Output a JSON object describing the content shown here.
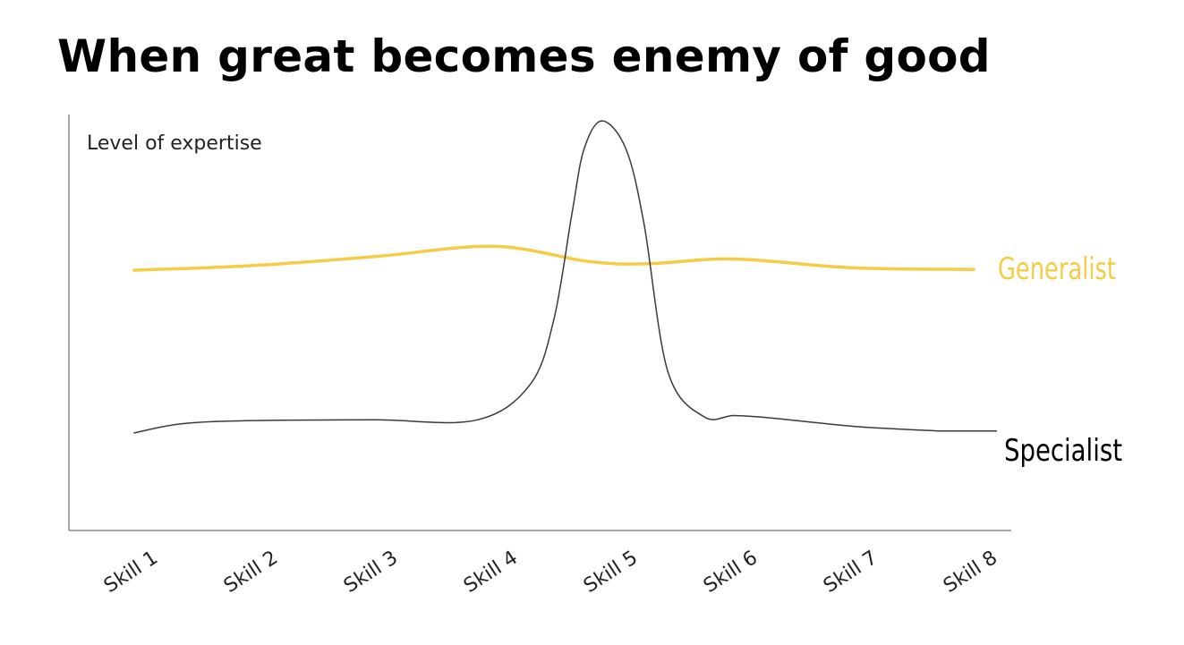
{
  "slide": {
    "title": "When great becomes enemy of good"
  },
  "chart_data": {
    "type": "line",
    "title": "When great becomes enemy of good",
    "ylabel": "Level of expertise",
    "xlabel": "",
    "categories": [
      "Skill 1",
      "Skill 2",
      "Skill 3",
      "Skill 4",
      "Skill 5",
      "Skill 6",
      "Skill 7",
      "Skill 8"
    ],
    "ylim": [
      0,
      100
    ],
    "grid": false,
    "series": [
      {
        "name": "Generalist",
        "color": "#f5cc45",
        "x": [
          0,
          1,
          2,
          3,
          3.8,
          4.3,
          5,
          6,
          7
        ],
        "values": [
          60.7,
          61.9,
          64.2,
          66.9,
          62.9,
          62.4,
          63.6,
          61.3,
          60.9
        ]
      },
      {
        "name": "Specialist",
        "color": "#3a3a3a",
        "x": [
          0,
          0.4,
          1,
          2,
          2.85,
          3.3,
          3.5,
          3.65,
          3.75,
          3.9,
          4.1,
          4.25,
          4.45,
          4.75,
          5,
          5.3,
          6,
          6.7
        ],
        "values": [
          18.4,
          20.8,
          21.6,
          21.8,
          21.7,
          30.9,
          48,
          75.4,
          92.1,
          99.5,
          92.2,
          72.9,
          34.3,
          22.6,
          22.9,
          22.3,
          20.1,
          18.9
        ]
      }
    ]
  }
}
